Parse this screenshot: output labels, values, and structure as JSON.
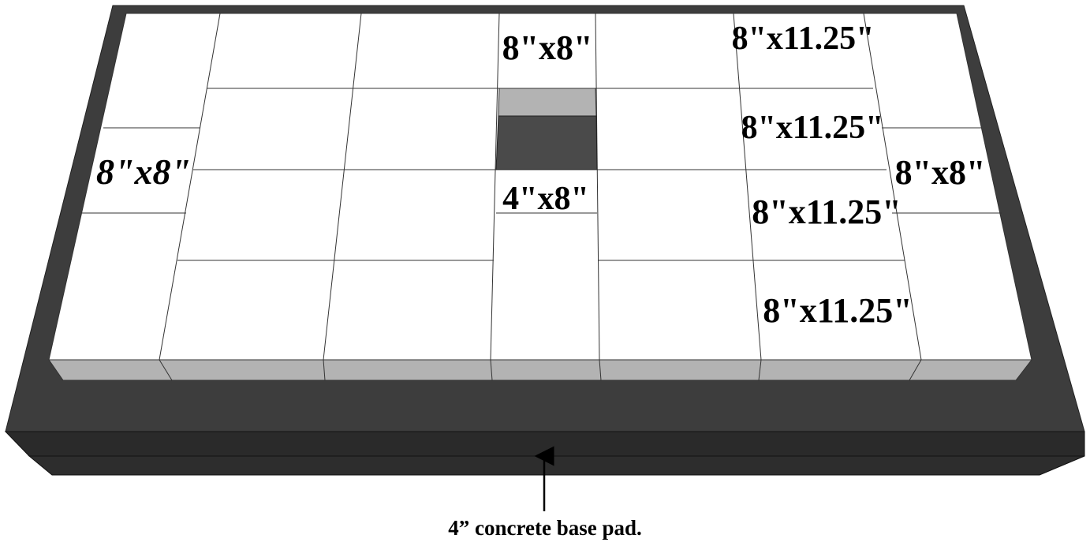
{
  "diagram": {
    "labels": {
      "top_center": "8\"x8\"",
      "pit_front": "4\"x8\"",
      "left_side": "8\"x8\"",
      "right_side": "8\"x8\"",
      "right_col_1": "8\"x11.25\"",
      "right_col_2": "8\"x11.25\"",
      "right_col_3": "8\"x11.25\"",
      "right_col_4": "8\"x11.25\""
    },
    "caption": "4” concrete base pad.",
    "colors": {
      "pad_top": "#3d3d3d",
      "pad_side": "#2a2a2a",
      "block_top": "#ffffff",
      "block_face": "#b3b3b3",
      "pit": "#4a4a4a",
      "arrow": "#000000"
    }
  }
}
